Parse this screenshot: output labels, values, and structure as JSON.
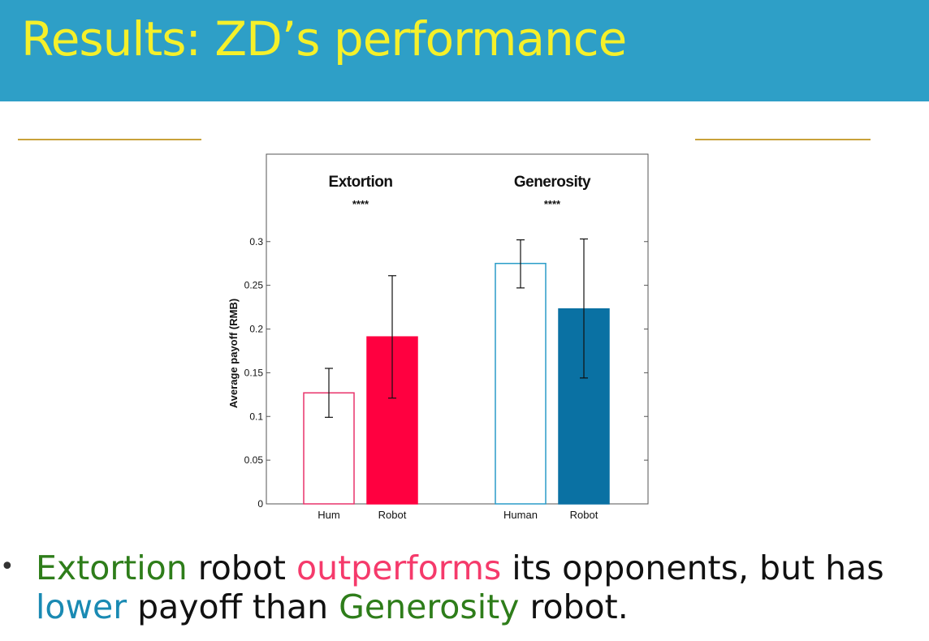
{
  "header": {
    "title": "Results: ZD’s performance"
  },
  "chart_data": {
    "type": "bar",
    "ylabel": "Average payoff (RMB)",
    "xlabel": "",
    "ylim": [
      0,
      0.4
    ],
    "yticks": [
      "0",
      "0.05",
      "0.1",
      "0.15",
      "0.2",
      "0.25",
      "0.3"
    ],
    "grid": false,
    "groups": [
      {
        "label": "Extortion",
        "significance": "****",
        "bars": [
          {
            "category": "Hum",
            "value": 0.127,
            "err_low": 0.099,
            "err_high": 0.155,
            "fill": "#ffffff",
            "stroke": "#e8336b"
          },
          {
            "category": "Robot",
            "value": 0.191,
            "err_low": 0.121,
            "err_high": 0.261,
            "fill": "#ff0040",
            "stroke": "#ff0040"
          }
        ]
      },
      {
        "label": "Generosity",
        "significance": "****",
        "bars": [
          {
            "category": "Human",
            "value": 0.275,
            "err_low": 0.247,
            "err_high": 0.302,
            "fill": "#ffffff",
            "stroke": "#2a9cc8"
          },
          {
            "category": "Robot",
            "value": 0.223,
            "err_low": 0.144,
            "err_high": 0.303,
            "fill": "#0a71a3",
            "stroke": "#0a71a3"
          }
        ]
      }
    ]
  },
  "bullet": {
    "marker": "•",
    "parts": [
      {
        "text": "Extortion",
        "style": "green"
      },
      {
        "text": " robot ",
        "style": "plain"
      },
      {
        "text": "outperforms",
        "style": "pink"
      },
      {
        "text": " its opponents, but has ",
        "style": "plain"
      },
      {
        "text": "lower",
        "style": "blue"
      },
      {
        "text": " payoff than ",
        "style": "plain"
      },
      {
        "text": "Generosity",
        "style": "green"
      },
      {
        "text": " robot.",
        "style": "plain"
      }
    ]
  },
  "colors": {
    "header_bg": "#2e9fc7",
    "title": "#f5f02a",
    "rule": "#c9a23a"
  }
}
